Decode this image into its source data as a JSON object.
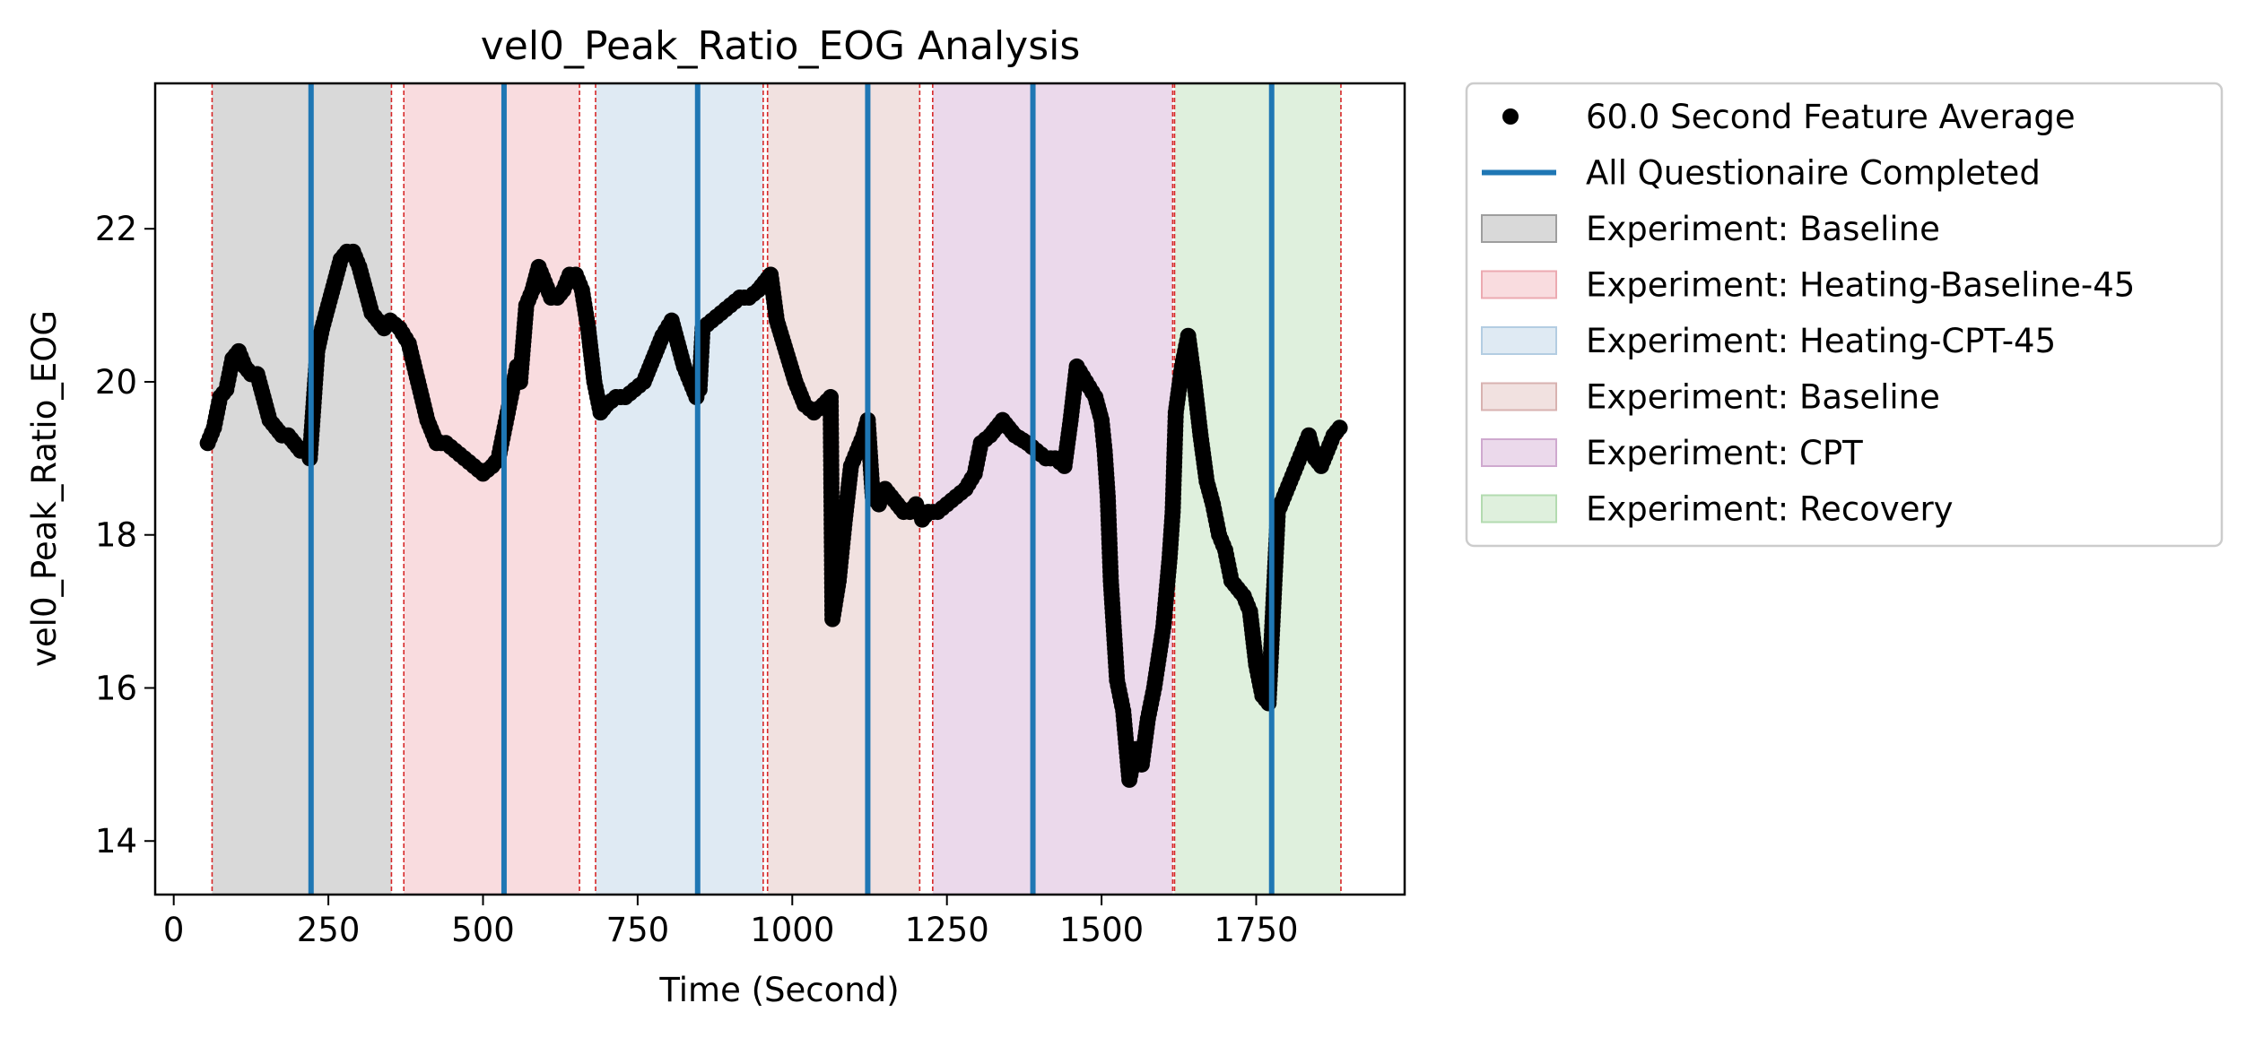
{
  "chart_data": {
    "type": "scatter",
    "title": "vel0_Peak_Ratio_EOG Analysis",
    "xlabel": "Time (Second)",
    "ylabel": "vel0_Peak_Ratio_EOG",
    "xlim": [
      -30,
      1990
    ],
    "ylim": [
      13.3,
      23.9
    ],
    "x_ticks": [
      0,
      250,
      500,
      750,
      1000,
      1250,
      1500,
      1750
    ],
    "y_ticks": [
      14,
      16,
      18,
      20,
      22
    ],
    "grid": false,
    "legend_position": "outside-right-top",
    "colors": {
      "points": "#000000",
      "questionnaire_line": "#1f77b4",
      "boundary_line": "#d62728"
    },
    "phases": [
      {
        "label": "Experiment: Baseline",
        "start": 62,
        "end": 352,
        "color": "#d9d9d9"
      },
      {
        "label": "Experiment: Heating-Baseline-45",
        "start": 372,
        "end": 656,
        "color": "#f9dcdf"
      },
      {
        "label": "Experiment: Heating-CPT-45",
        "start": 682,
        "end": 953,
        "color": "#dfeaf3"
      },
      {
        "label": "Experiment: Baseline",
        "start": 960,
        "end": 1206,
        "color": "#f1e1e0"
      },
      {
        "label": "Experiment: CPT",
        "start": 1227,
        "end": 1615,
        "color": "#ebd9eb"
      },
      {
        "label": "Experiment: Recovery",
        "start": 1618,
        "end": 1887,
        "color": "#dff0dd"
      }
    ],
    "questionnaire_lines": [
      222,
      534,
      847,
      1122,
      1389,
      1775
    ],
    "series": [
      {
        "name": "60.0 Second Feature Average",
        "type": "scatter",
        "x": [
          55,
          65,
          75,
          85,
          95,
          105,
          115,
          125,
          135,
          145,
          155,
          165,
          175,
          185,
          195,
          205,
          215,
          220,
          232,
          240,
          250,
          260,
          270,
          280,
          290,
          300,
          310,
          320,
          330,
          340,
          350,
          365,
          380,
          395,
          410,
          425,
          440,
          455,
          470,
          485,
          500,
          515,
          525,
          535,
          545,
          555,
          560,
          570,
          580,
          590,
          600,
          610,
          620,
          630,
          640,
          650,
          660,
          670,
          680,
          690,
          700,
          715,
          730,
          745,
          760,
          775,
          790,
          805,
          815,
          825,
          835,
          845,
          850,
          855,
          870,
          885,
          900,
          915,
          930,
          945,
          955,
          965,
          975,
          990,
          1005,
          1020,
          1035,
          1050,
          1062,
          1065,
          1075,
          1085,
          1095,
          1105,
          1115,
          1122,
          1130,
          1140,
          1150,
          1160,
          1170,
          1180,
          1190,
          1200,
          1210,
          1220,
          1235,
          1250,
          1265,
          1280,
          1295,
          1305,
          1320,
          1340,
          1360,
          1380,
          1395,
          1410,
          1425,
          1440,
          1450,
          1460,
          1475,
          1490,
          1500,
          1505,
          1510,
          1515,
          1525,
          1535,
          1545,
          1555,
          1565,
          1575,
          1585,
          1600,
          1610,
          1615,
          1620,
          1630,
          1640,
          1650,
          1660,
          1670,
          1680,
          1690,
          1700,
          1710,
          1720,
          1730,
          1740,
          1750,
          1760,
          1770,
          1785,
          1795,
          1805,
          1815,
          1825,
          1835,
          1845,
          1855,
          1865,
          1875,
          1885
        ],
        "y": [
          19.2,
          19.4,
          19.8,
          19.9,
          20.3,
          20.4,
          20.2,
          20.1,
          20.1,
          19.8,
          19.5,
          19.4,
          19.3,
          19.3,
          19.2,
          19.1,
          19.1,
          19.0,
          20.4,
          20.7,
          21.0,
          21.3,
          21.6,
          21.7,
          21.7,
          21.5,
          21.2,
          20.9,
          20.8,
          20.7,
          20.8,
          20.7,
          20.5,
          20.0,
          19.5,
          19.2,
          19.2,
          19.1,
          19.0,
          18.9,
          18.8,
          18.9,
          19.0,
          19.4,
          19.8,
          20.2,
          20.0,
          21.0,
          21.2,
          21.5,
          21.3,
          21.1,
          21.1,
          21.2,
          21.4,
          21.4,
          21.2,
          20.7,
          20.0,
          19.6,
          19.7,
          19.8,
          19.8,
          19.9,
          20.0,
          20.3,
          20.6,
          20.8,
          20.5,
          20.2,
          20.0,
          19.8,
          19.9,
          20.7,
          20.8,
          20.9,
          21.0,
          21.1,
          21.1,
          21.2,
          21.3,
          21.4,
          20.8,
          20.4,
          20.0,
          19.7,
          19.6,
          19.7,
          19.8,
          16.9,
          17.4,
          18.2,
          18.9,
          19.1,
          19.3,
          19.5,
          18.5,
          18.4,
          18.6,
          18.5,
          18.4,
          18.3,
          18.3,
          18.4,
          18.2,
          18.3,
          18.3,
          18.4,
          18.5,
          18.6,
          18.8,
          19.2,
          19.3,
          19.5,
          19.3,
          19.2,
          19.1,
          19.0,
          19.0,
          18.9,
          19.5,
          20.2,
          20.0,
          19.8,
          19.5,
          19.1,
          18.5,
          17.4,
          16.1,
          15.7,
          14.8,
          15.2,
          15.0,
          15.6,
          16.0,
          16.8,
          17.7,
          18.3,
          19.6,
          20.2,
          20.6,
          20.0,
          19.3,
          18.7,
          18.4,
          18.0,
          17.8,
          17.4,
          17.3,
          17.2,
          17.0,
          16.3,
          15.9,
          15.8,
          18.3,
          18.5,
          18.7,
          18.9,
          19.1,
          19.3,
          19.0,
          18.9,
          19.1,
          19.3,
          19.4
        ]
      },
      {
        "name": "All Questionaire Completed",
        "type": "vline"
      }
    ],
    "legend": [
      {
        "label": "60.0 Second Feature Average",
        "kind": "marker",
        "color": "#000000"
      },
      {
        "label": "All Questionaire Completed",
        "kind": "line",
        "color": "#1f77b4"
      },
      {
        "label": "Experiment: Baseline",
        "kind": "patch",
        "color": "#d9d9d9",
        "edge": "#9e9e9e"
      },
      {
        "label": "Experiment: Heating-Baseline-45",
        "kind": "patch",
        "color": "#f9dcdf",
        "edge": "#ecaab1"
      },
      {
        "label": "Experiment: Heating-CPT-45",
        "kind": "patch",
        "color": "#dfeaf3",
        "edge": "#b3cde2"
      },
      {
        "label": "Experiment: Baseline",
        "kind": "patch",
        "color": "#f1e1e0",
        "edge": "#d8b2b0"
      },
      {
        "label": "Experiment: CPT",
        "kind": "patch",
        "color": "#ebd9eb",
        "edge": "#cfa9cf"
      },
      {
        "label": "Experiment: Recovery",
        "kind": "patch",
        "color": "#dff0dd",
        "edge": "#b3dbb0"
      }
    ]
  }
}
